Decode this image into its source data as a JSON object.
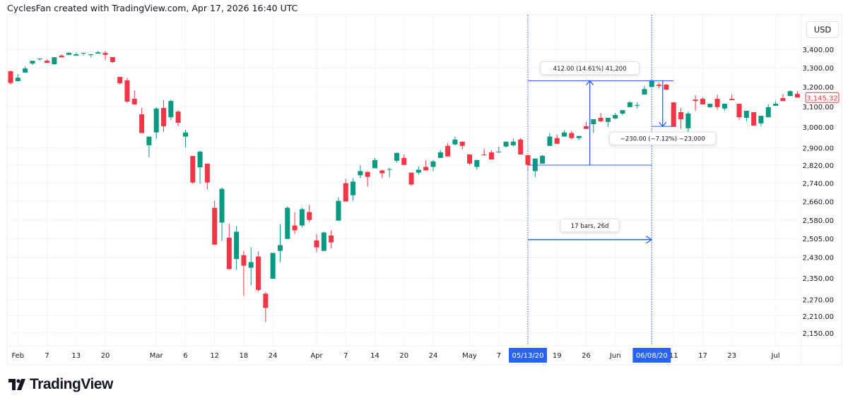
{
  "header": {
    "attribution": "CyclesFan created with TradingView.com, Apr 17, 2026 16:40 UTC"
  },
  "currency_button": "USD",
  "logo_text": "TradingView",
  "colors": {
    "up": "#089981",
    "down": "#f23645",
    "tool": "#2962ff",
    "grid": "#f0f3fa"
  },
  "chart_data": {
    "type": "candlestick",
    "y_scale": "log",
    "ylim": [
      2110,
      3480
    ],
    "grid": true,
    "y_ticks": [
      "3,400.00",
      "3,300.00",
      "3,200.00",
      "3,100.00",
      "3,000.00",
      "2,900.00",
      "2,820.00",
      "2,740.00",
      "2,660.00",
      "2,580.00",
      "2,505.00",
      "2,430.00",
      "2,350.00",
      "2,270.00",
      "2,210.00",
      "2,150.00"
    ],
    "y_tick_values": [
      3400,
      3300,
      3200,
      3100,
      3000,
      2900,
      2820,
      2740,
      2660,
      2580,
      2505,
      2430,
      2350,
      2270,
      2210,
      2150
    ],
    "last_price_label": "3,145.32",
    "x_ticks": [
      {
        "label": "Feb",
        "bar": 1
      },
      {
        "label": "7",
        "bar": 5
      },
      {
        "label": "13",
        "bar": 9
      },
      {
        "label": "20",
        "bar": 13
      },
      {
        "label": "Mar",
        "bar": 20
      },
      {
        "label": "6",
        "bar": 24
      },
      {
        "label": "12",
        "bar": 28
      },
      {
        "label": "18",
        "bar": 32
      },
      {
        "label": "24",
        "bar": 36
      },
      {
        "label": "Apr",
        "bar": 42
      },
      {
        "label": "7",
        "bar": 46
      },
      {
        "label": "14",
        "bar": 50
      },
      {
        "label": "20",
        "bar": 54
      },
      {
        "label": "24",
        "bar": 58
      },
      {
        "label": "May",
        "bar": 63
      },
      {
        "label": "7",
        "bar": 67
      },
      {
        "label": "05/13/20",
        "bar": 71,
        "highlight": true
      },
      {
        "label": "19",
        "bar": 75
      },
      {
        "label": "26",
        "bar": 79
      },
      {
        "label": "Jun",
        "bar": 83
      },
      {
        "label": "06/08/20",
        "bar": 88,
        "highlight": true
      },
      {
        "label": "11",
        "bar": 91
      },
      {
        "label": "17",
        "bar": 95
      },
      {
        "label": "23",
        "bar": 99
      },
      {
        "label": "Jul",
        "bar": 105
      }
    ],
    "ohlc": [
      [
        3282,
        3286,
        3212,
        3220
      ],
      [
        3230,
        3267,
        3228,
        3248
      ],
      [
        3275,
        3309,
        3275,
        3297
      ],
      [
        3323,
        3338,
        3316,
        3338
      ],
      [
        3346,
        3350,
        3338,
        3350
      ],
      [
        3338,
        3346,
        3327,
        3327
      ],
      [
        3319,
        3357,
        3319,
        3357
      ],
      [
        3366,
        3373,
        3357,
        3357
      ],
      [
        3370,
        3384,
        3370,
        3381
      ],
      [
        3366,
        3384,
        3366,
        3373
      ],
      [
        3377,
        3381,
        3366,
        3381
      ],
      [
        3370,
        3373,
        3357,
        3373
      ],
      [
        3377,
        3392,
        3377,
        3384
      ],
      [
        3381,
        3392,
        3342,
        3370
      ],
      [
        3358,
        3358,
        3327,
        3331
      ],
      [
        3252,
        3252,
        3212,
        3219
      ],
      [
        3234,
        3248,
        3118,
        3125
      ],
      [
        3139,
        3182,
        3108,
        3111
      ],
      [
        3061,
        3093,
        2970,
        2970
      ],
      [
        2912,
        2953,
        2856,
        2953
      ],
      [
        2973,
        3097,
        2943,
        3090
      ],
      [
        3093,
        3132,
        2976,
        3003
      ],
      [
        3047,
        3135,
        3034,
        3128
      ],
      [
        3075,
        3082,
        3003,
        3020
      ],
      [
        2953,
        2986,
        2902,
        2973
      ],
      [
        2862,
        2862,
        2736,
        2742
      ],
      [
        2810,
        2886,
        2736,
        2882
      ],
      [
        2827,
        2827,
        2711,
        2742
      ],
      [
        2632,
        2662,
        2480,
        2480
      ],
      [
        2570,
        2720,
        2495,
        2714
      ],
      [
        2508,
        2564,
        2381,
        2384
      ],
      [
        2423,
        2555,
        2381,
        2532
      ],
      [
        2438,
        2455,
        2283,
        2397
      ],
      [
        2389,
        2469,
        2322,
        2411
      ],
      [
        2433,
        2452,
        2299,
        2305
      ],
      [
        2291,
        2297,
        2188,
        2239
      ],
      [
        2347,
        2447,
        2347,
        2447
      ],
      [
        2455,
        2564,
        2411,
        2478
      ],
      [
        2503,
        2638,
        2503,
        2632
      ],
      [
        2558,
        2614,
        2523,
        2538
      ],
      [
        2558,
        2632,
        2549,
        2626
      ],
      [
        2614,
        2644,
        2572,
        2581
      ],
      [
        2497,
        2523,
        2450,
        2469
      ],
      [
        2455,
        2532,
        2455,
        2529
      ],
      [
        2517,
        2538,
        2464,
        2489
      ],
      [
        2578,
        2677,
        2578,
        2662
      ],
      [
        2739,
        2758,
        2659,
        2659
      ],
      [
        2686,
        2761,
        2662,
        2746
      ],
      [
        2774,
        2818,
        2761,
        2793
      ],
      [
        2789,
        2793,
        2723,
        2767
      ],
      [
        2806,
        2853,
        2806,
        2843
      ],
      [
        2796,
        2799,
        2761,
        2783
      ],
      [
        2799,
        2808,
        2764,
        2802
      ],
      [
        2840,
        2879,
        2831,
        2876
      ],
      [
        2853,
        2869,
        2821,
        2821
      ],
      [
        2786,
        2786,
        2727,
        2733
      ],
      [
        2786,
        2815,
        2777,
        2799
      ],
      [
        2812,
        2843,
        2796,
        2796
      ],
      [
        2812,
        2843,
        2793,
        2837
      ],
      [
        2853,
        2889,
        2853,
        2879
      ],
      [
        2909,
        2922,
        2860,
        2860
      ],
      [
        2916,
        2953,
        2912,
        2939
      ],
      [
        2929,
        2929,
        2892,
        2909
      ],
      [
        2869,
        2869,
        2821,
        2827
      ],
      [
        2812,
        2846,
        2799,
        2843
      ],
      [
        2869,
        2896,
        2863,
        2866
      ],
      [
        2879,
        2889,
        2846,
        2846
      ],
      [
        2879,
        2906,
        2876,
        2882
      ],
      [
        2906,
        2929,
        2902,
        2929
      ],
      [
        2912,
        2943,
        2906,
        2929
      ],
      [
        2939,
        2946,
        2869,
        2869
      ],
      [
        2866,
        2866,
        2796,
        2821
      ],
      [
        2793,
        2850,
        2767,
        2850
      ],
      [
        2827,
        2866,
        2827,
        2863
      ],
      [
        2909,
        2970,
        2909,
        2953
      ],
      [
        2946,
        2963,
        2919,
        2919
      ],
      [
        2953,
        2983,
        2953,
        2973
      ],
      [
        2970,
        2980,
        2939,
        2946
      ],
      [
        2946,
        2956,
        2936,
        2956
      ],
      [
        3003,
        3024,
        2990,
        2990
      ],
      [
        3013,
        3037,
        2970,
        3037
      ],
      [
        3044,
        3068,
        3024,
        3027
      ],
      [
        3024,
        3044,
        3000,
        3044
      ],
      [
        3041,
        3068,
        3037,
        3058
      ],
      [
        3065,
        3082,
        3058,
        3082
      ],
      [
        3097,
        3128,
        3097,
        3121
      ],
      [
        3104,
        3121,
        3090,
        3108
      ],
      [
        3161,
        3205,
        3161,
        3189
      ],
      [
        3200,
        3237,
        3200,
        3234
      ],
      [
        3212,
        3223,
        3193,
        3205
      ],
      [
        3212,
        3215,
        3182,
        3186
      ],
      [
        3121,
        3121,
        3000,
        3000
      ],
      [
        3072,
        3093,
        2990,
        3037
      ],
      [
        2993,
        3075,
        2970,
        3065
      ],
      [
        3135,
        3157,
        3079,
        3128
      ],
      [
        3139,
        3146,
        3111,
        3111
      ],
      [
        3097,
        3114,
        3093,
        3114
      ],
      [
        3139,
        3160,
        3083,
        3097
      ],
      [
        3090,
        3114,
        3079,
        3114
      ],
      [
        3139,
        3160,
        3132,
        3132
      ],
      [
        3114,
        3114,
        3034,
        3047
      ],
      [
        3044,
        3079,
        3027,
        3079
      ],
      [
        3072,
        3072,
        3006,
        3006
      ],
      [
        3017,
        3054,
        3003,
        3054
      ],
      [
        3047,
        3111,
        3047,
        3097
      ],
      [
        3104,
        3128,
        3104,
        3114
      ],
      [
        3143,
        3164,
        3128,
        3128
      ],
      [
        3153,
        3182,
        3153,
        3178
      ],
      [
        3164,
        3178,
        3146,
        3145.32
      ]
    ],
    "annotations": {
      "price_range_up": {
        "label": "412.00 (14.61%) 41,200",
        "from_bar": 71,
        "to_bar": 88,
        "from_price": 2820,
        "to_price": 3232
      },
      "price_range_down": {
        "label": "−230.00 (−7.12%) −23,000",
        "from_bar": 88,
        "to_bar": 91,
        "from_price": 3232,
        "to_price": 3002
      },
      "date_range": {
        "label": "17 bars, 26d",
        "from_bar": 71,
        "to_bar": 88,
        "price": 2500
      }
    }
  }
}
